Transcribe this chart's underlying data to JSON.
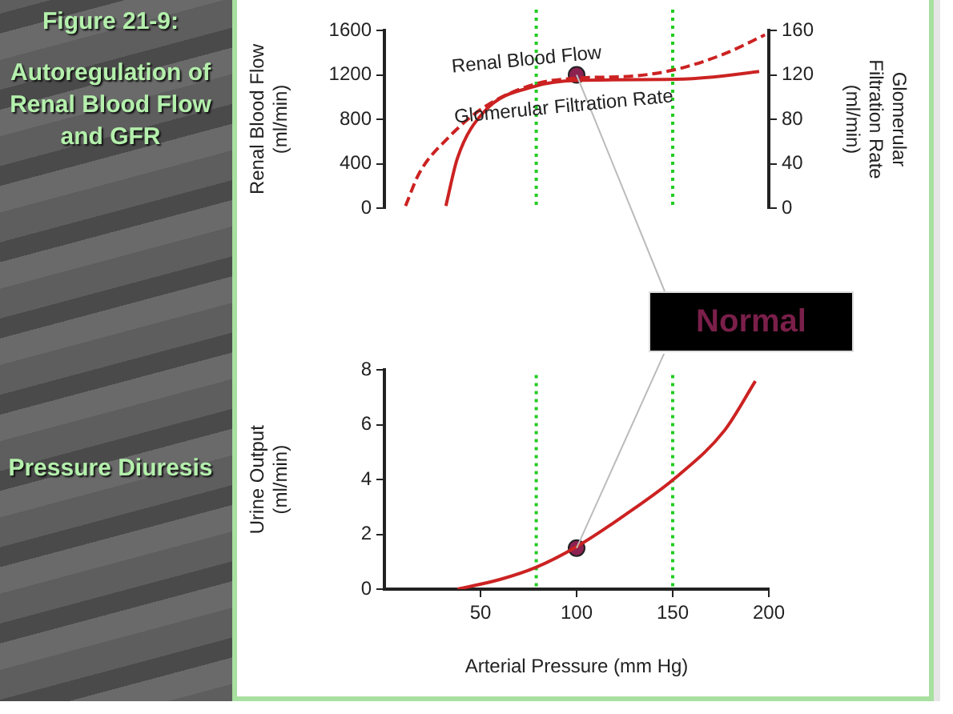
{
  "chart_data": [
    {
      "type": "line",
      "ylabel": "Renal Blood Flow (ml/min)",
      "y2label": "Glomerular Filtration Rate (ml/min)",
      "xlim": [
        0,
        200
      ],
      "ylim": [
        0,
        1600
      ],
      "yticks": [
        0,
        400,
        800,
        1200,
        1600
      ],
      "y2lim": [
        0,
        160
      ],
      "y2ticks": [
        0,
        40,
        80,
        120,
        160
      ],
      "tick_labels": "y",
      "grid": false,
      "legend": false,
      "series": [
        {
          "name": "Renal Blood Flow",
          "color": "#cc2222",
          "line_style": "dashed",
          "marker": "none",
          "x": [
            11,
            18,
            33,
            52,
            79,
            100,
            130,
            152,
            177,
            198
          ],
          "values": [
            20,
            310,
            630,
            910,
            1120,
            1170,
            1190,
            1250,
            1390,
            1560
          ]
        },
        {
          "name": "Glomerular Filtration Rate",
          "axis": "y2",
          "color": "#cc2222",
          "line_style": "solid",
          "marker": "none",
          "x": [
            32,
            38,
            52,
            79,
            100,
            152,
            171,
            195
          ],
          "values": [
            2,
            45,
            87,
            110,
            115,
            116,
            118,
            123
          ]
        },
        {
          "type": "scatter",
          "color": "#8b2252",
          "marker": "circle",
          "x": [
            100
          ],
          "values": [
            1200
          ]
        }
      ],
      "ref_lines": [
        {
          "axis": "x",
          "value": 79,
          "color": "#22cc22",
          "line_style": "dotted"
        },
        {
          "axis": "x",
          "value": 150,
          "color": "#22cc22",
          "line_style": "dotted"
        }
      ],
      "annotations": [
        "Figure 21-9:",
        "Autoregulation of Renal Blood Flow and GFR",
        {
          "text": "Normal",
          "x": 100,
          "y": 1200
        }
      ]
    },
    {
      "type": "line",
      "annotations": [
        "Pressure Diuresis"
      ],
      "xlabel": "Arterial Pressure (mm Hg)",
      "ylabel": "Urine Output (ml/min)",
      "xlim": [
        0,
        200
      ],
      "xticks": [
        50,
        100,
        150,
        200
      ],
      "ylim": [
        0,
        8
      ],
      "yticks": [
        0,
        2,
        4,
        6,
        8
      ],
      "grid": false,
      "legend": false,
      "series": [
        {
          "color": "#cc2222",
          "line_style": "solid",
          "marker": "none",
          "x": [
            38,
            60,
            79,
            100,
            125,
            152,
            177,
            193
          ],
          "values": [
            0,
            0.35,
            0.8,
            1.55,
            2.7,
            4.1,
            5.8,
            7.6
          ]
        },
        {
          "type": "scatter",
          "color": "#8b2252",
          "marker": "circle",
          "x": [
            100
          ],
          "values": [
            1.5
          ]
        }
      ],
      "ref_lines": [
        {
          "axis": "x",
          "value": 79,
          "color": "#22cc22",
          "line_style": "dotted"
        },
        {
          "axis": "x",
          "value": 150,
          "color": "#22cc22",
          "line_style": "dotted"
        }
      ]
    }
  ]
}
